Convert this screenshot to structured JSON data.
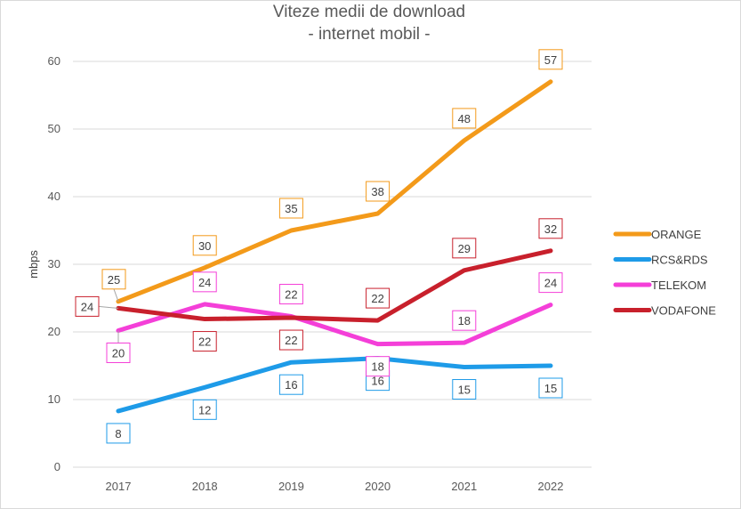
{
  "chart_data": {
    "type": "line",
    "title": "Viteze medii de download",
    "subtitle": "- internet mobil -",
    "xlabel": "",
    "ylabel": "mbps",
    "ylim": [
      0,
      60
    ],
    "yticks": [
      0,
      10,
      20,
      30,
      40,
      50,
      60
    ],
    "categories": [
      "2017",
      "2018",
      "2019",
      "2020",
      "2021",
      "2022"
    ],
    "grid": true,
    "legend_position": "right",
    "series": [
      {
        "name": "ORANGE",
        "color": "#f39a1a",
        "values": [
          24.5,
          29.5,
          35,
          37.5,
          48.3,
          57
        ],
        "labels": [
          "25",
          "30",
          "35",
          "38",
          "48",
          "57"
        ]
      },
      {
        "name": "RCS&RDS",
        "color": "#1e9be8",
        "values": [
          8.3,
          11.8,
          15.5,
          16.1,
          14.8,
          15
        ],
        "labels": [
          "8",
          "12",
          "16",
          "16",
          "15",
          "15"
        ]
      },
      {
        "name": "TELEKOM",
        "color": "#f43fd8",
        "values": [
          20.2,
          24.1,
          22.3,
          18.2,
          18.4,
          24
        ],
        "labels": [
          "20",
          "24",
          "22",
          "18",
          "18",
          "24"
        ]
      },
      {
        "name": "VODAFONE",
        "color": "#c8202c",
        "values": [
          23.5,
          21.9,
          22.1,
          21.7,
          29.1,
          32
        ],
        "labels": [
          "24",
          "22",
          "22",
          "22",
          "29",
          "32"
        ]
      }
    ]
  }
}
